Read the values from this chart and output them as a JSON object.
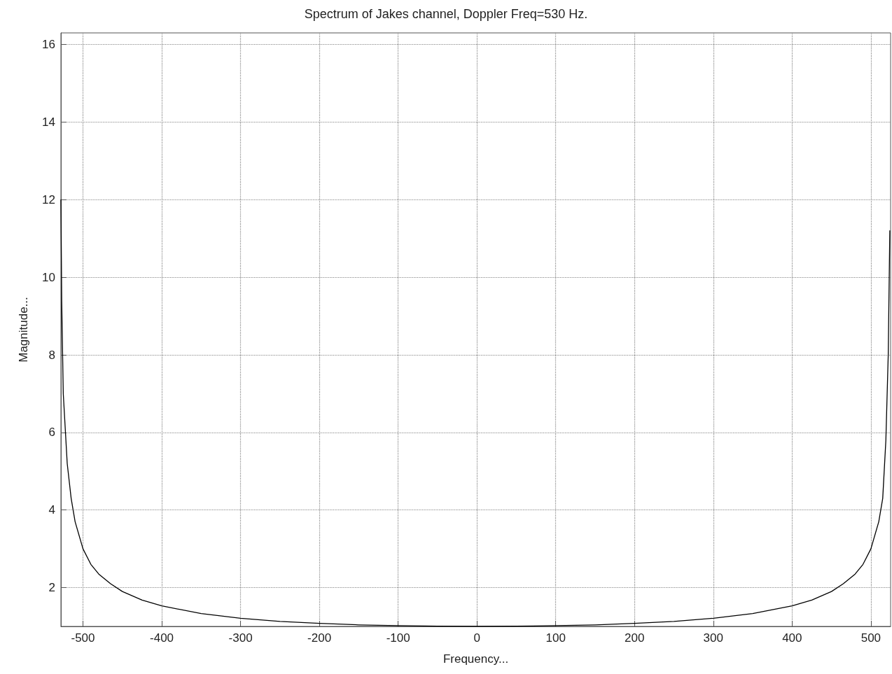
{
  "chart_data": {
    "type": "line",
    "title": "Spectrum of Jakes channel, Doppler Freq=530 Hz.",
    "xlabel": "Frequency...",
    "ylabel": "Magnitude...",
    "x": [
      -528,
      -527,
      -525,
      -520,
      -515,
      -510,
      -500,
      -490,
      -480,
      -465,
      -450,
      -425,
      -400,
      -350,
      -300,
      -250,
      -200,
      -150,
      -100,
      -50,
      0,
      50,
      100,
      150,
      200,
      250,
      300,
      350,
      400,
      425,
      450,
      465,
      480,
      490,
      500,
      510,
      515,
      519,
      522,
      524
    ],
    "series": [
      {
        "color": "#000000",
        "values": [
          12,
          9.4,
          7,
          5.2,
          4.3,
          3.7,
          3.0,
          2.6,
          2.35,
          2.1,
          1.9,
          1.68,
          1.53,
          1.33,
          1.21,
          1.13,
          1.08,
          1.04,
          1.02,
          1.005,
          1.0,
          1.005,
          1.02,
          1.04,
          1.08,
          1.13,
          1.21,
          1.33,
          1.53,
          1.68,
          1.9,
          2.1,
          2.35,
          2.6,
          3.0,
          3.7,
          4.3,
          5.8,
          8,
          11.2
        ]
      }
    ],
    "xlim": [
      -528,
      525
    ],
    "ylim": [
      1,
      16.3
    ],
    "xticks": [
      -500,
      -400,
      -300,
      -200,
      -100,
      0,
      100,
      200,
      300,
      400,
      500
    ],
    "yticks": [
      2,
      4,
      6,
      8,
      10,
      12,
      14,
      16
    ],
    "grid": true,
    "line_style": "solid",
    "marker": "none"
  }
}
